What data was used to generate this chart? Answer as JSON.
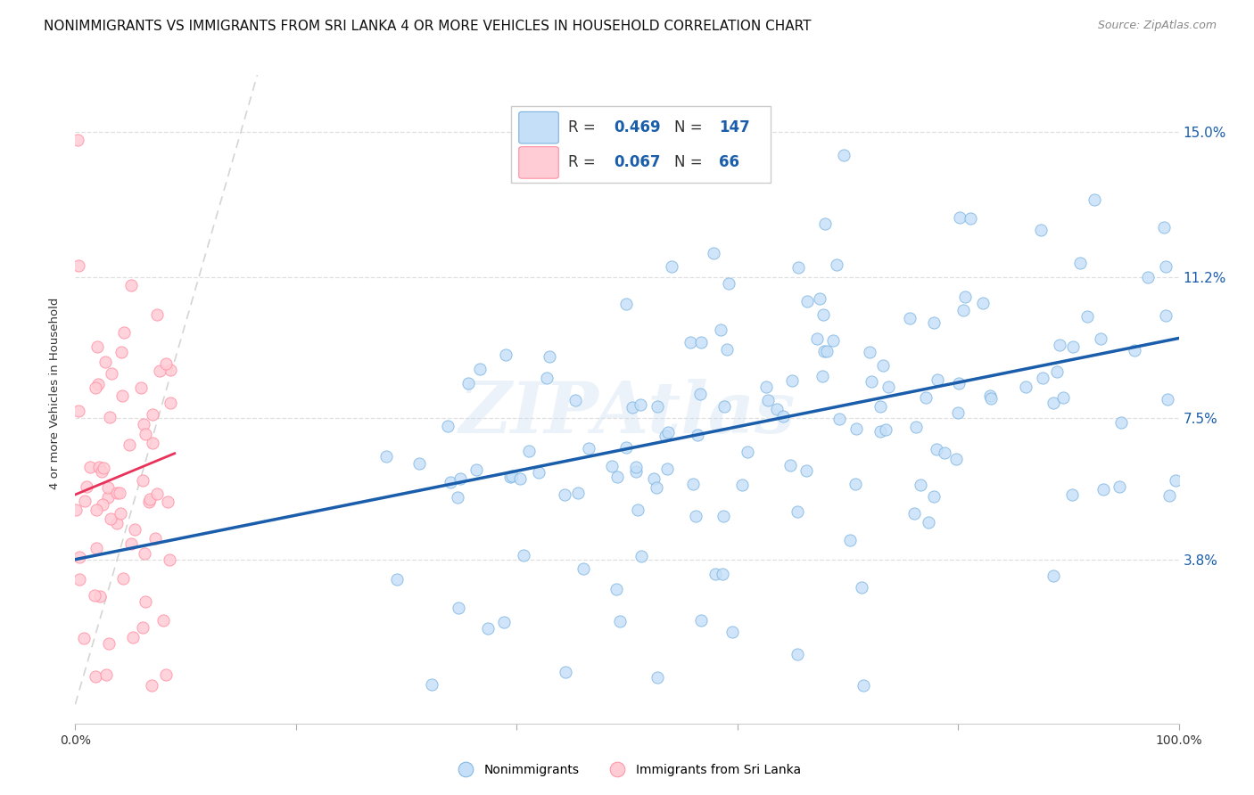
{
  "title": "NONIMMIGRANTS VS IMMIGRANTS FROM SRI LANKA 4 OR MORE VEHICLES IN HOUSEHOLD CORRELATION CHART",
  "source": "Source: ZipAtlas.com",
  "ylabel": "4 or more Vehicles in Household",
  "ytick_labels": [
    "3.8%",
    "7.5%",
    "11.2%",
    "15.0%"
  ],
  "ytick_values": [
    0.038,
    0.075,
    0.112,
    0.15
  ],
  "xlim": [
    0.0,
    1.0
  ],
  "ylim": [
    -0.005,
    0.168
  ],
  "nonimmigrant_color": "#C5DFF8",
  "nonimmigrant_edge": "#7AB3E0",
  "immigrant_color": "#FFCCD5",
  "immigrant_edge": "#FF8FA3",
  "regression_color_nonimmigrant": "#1A5DAB",
  "regression_color_immigrant": "#E8325A",
  "diagonal_color": "#D0D0D0",
  "R_nonimmigrant": 0.469,
  "N_nonimmigrant": 147,
  "R_immigrant": 0.067,
  "N_immigrant": 66,
  "legend_label_nonimmigrant": "Nonimmigrants",
  "legend_label_immigrant": "Immigrants from Sri Lanka",
  "background_color": "#FFFFFF",
  "grid_color": "#DCDCDC",
  "slope_non": 0.058,
  "intercept_non": 0.038,
  "slope_imm": 0.12,
  "intercept_imm": 0.055
}
